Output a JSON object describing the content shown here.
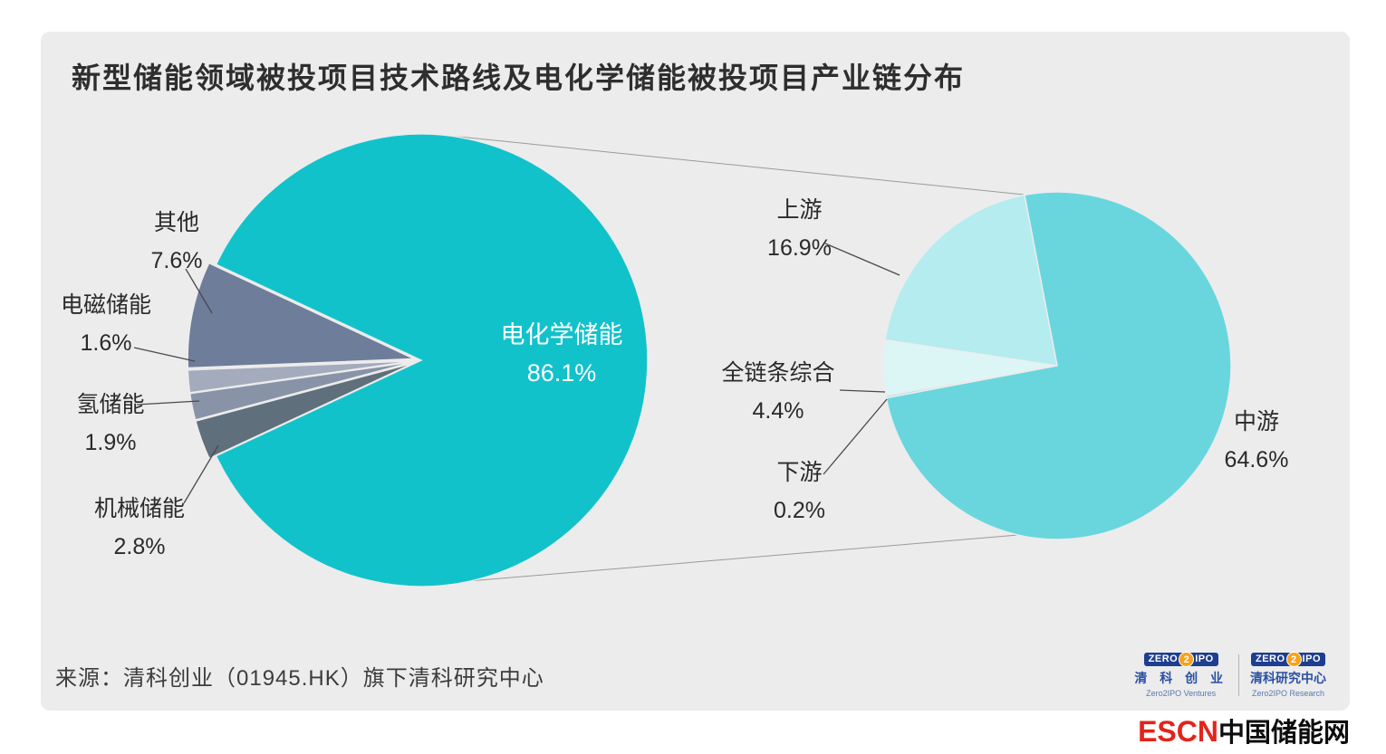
{
  "title": "新型储能领域被投项目技术路线及电化学储能被投项目产业链分布",
  "source": "来源：清科创业（01945.HK）旗下清科研究中心",
  "accent_color": "#12c2cb",
  "card_bg": "#ececec",
  "chart_data": [
    {
      "type": "pie",
      "title": "新型储能领域被投项目技术路线",
      "unit": "%",
      "legend": false,
      "slices": [
        {
          "label": "电化学储能",
          "value": 86.1,
          "color": "#12c2cb"
        },
        {
          "label": "其他",
          "value": 7.6,
          "color": "#6e7d99"
        },
        {
          "label": "电磁储能",
          "value": 1.6,
          "color": "#a3abbc"
        },
        {
          "label": "氢储能",
          "value": 1.9,
          "color": "#8893a8"
        },
        {
          "label": "机械储能",
          "value": 2.8,
          "color": "#5f6f7c"
        }
      ]
    },
    {
      "type": "pie",
      "title": "电化学储能被投项目产业链分布",
      "unit": "%",
      "legend": false,
      "slices": [
        {
          "label": "中游",
          "value": 64.6,
          "color": "#69d6de"
        },
        {
          "label": "上游",
          "value": 16.9,
          "color": "#b4ecef"
        },
        {
          "label": "全链条综合",
          "value": 4.4,
          "color": "#dcf6f6"
        },
        {
          "label": "下游",
          "value": 0.2,
          "color": "#a8e7ec"
        }
      ]
    }
  ],
  "callouts": {
    "qita": {
      "label": "其他",
      "pct": "7.6%"
    },
    "dianci": {
      "label": "电磁储能",
      "pct": "1.6%"
    },
    "qing": {
      "label": "氢储能",
      "pct": "1.9%"
    },
    "jixie": {
      "label": "机械储能",
      "pct": "2.8%"
    },
    "dianhua": {
      "label": "电化学储能",
      "pct": "86.1%"
    },
    "shangyou": {
      "label": "上游",
      "pct": "16.9%"
    },
    "quanlian": {
      "label": "全链条综合",
      "pct": "4.4%"
    },
    "xiayou": {
      "label": "下游",
      "pct": "0.2%"
    },
    "zhongyou": {
      "label": "中游",
      "pct": "64.6%"
    }
  },
  "logos": [
    {
      "zero": "ZERO",
      "two": "2",
      "ipo": "IPO",
      "cn": "清 科 创 业",
      "en": "Zero2IPO Ventures"
    },
    {
      "zero": "ZERO",
      "two": "2",
      "ipo": "IPO",
      "cn": "清科研究中心",
      "en": "Zero2IPO Research"
    }
  ],
  "footer": {
    "escn": "ESCN",
    "site": "中国储能网"
  }
}
